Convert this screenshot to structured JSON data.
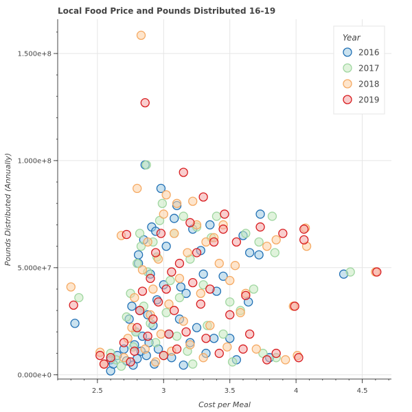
{
  "chart_data": {
    "type": "scatter",
    "title": "Local Food Price and Pounds Distributed 16-19",
    "xlabel": "Cost per Meal",
    "ylabel": "Pounds Distributed (Annually)",
    "xlim": [
      2.2,
      4.72
    ],
    "ylim": [
      -2000000,
      166000000
    ],
    "x_ticks": [
      2.5,
      3,
      3.5,
      4,
      4.5
    ],
    "x_tick_labels": [
      "2.5",
      "3",
      "3.5",
      "4",
      "4.5"
    ],
    "y_ticks": [
      0,
      50000000,
      100000000,
      150000000
    ],
    "y_tick_labels": [
      "0.000e+0",
      "5.000e+7",
      "1.000e+8",
      "1.500e+8"
    ],
    "grid": true,
    "legend": {
      "title": "Year",
      "placement": "top-right"
    },
    "series": [
      {
        "name": "2016",
        "fill": "#9ecae1",
        "stroke": "#1f6fb4",
        "points": [
          [
            2.33,
            24000000
          ],
          [
            2.6,
            1800000
          ],
          [
            2.6,
            7000000
          ],
          [
            2.62,
            5000000
          ],
          [
            2.65,
            9000000
          ],
          [
            2.7,
            12000000
          ],
          [
            2.72,
            6500000
          ],
          [
            2.74,
            26000000
          ],
          [
            2.76,
            32000000
          ],
          [
            2.77,
            4500000
          ],
          [
            2.78,
            14000000
          ],
          [
            2.79,
            20000000
          ],
          [
            2.8,
            7500000
          ],
          [
            2.81,
            52000000
          ],
          [
            2.81,
            56000000
          ],
          [
            2.82,
            30000000
          ],
          [
            2.83,
            11000000
          ],
          [
            2.84,
            18000000
          ],
          [
            2.85,
            63000000
          ],
          [
            2.86,
            98000000
          ],
          [
            2.87,
            9000000
          ],
          [
            2.88,
            28000000
          ],
          [
            2.89,
            15000000
          ],
          [
            2.9,
            47000000
          ],
          [
            2.91,
            69000000
          ],
          [
            2.92,
            23000000
          ],
          [
            2.93,
            5000000
          ],
          [
            2.94,
            67000000
          ],
          [
            2.95,
            35000000
          ],
          [
            2.96,
            12000000
          ],
          [
            2.98,
            87000000
          ],
          [
            3.0,
            42000000
          ],
          [
            3.02,
            60000000
          ],
          [
            3.04,
            19000000
          ],
          [
            3.06,
            8000000
          ],
          [
            3.08,
            73000000
          ],
          [
            3.1,
            79000000
          ],
          [
            3.12,
            26000000
          ],
          [
            3.13,
            41000000
          ],
          [
            3.15,
            4500000
          ],
          [
            3.17,
            38000000
          ],
          [
            3.2,
            15000000
          ],
          [
            3.22,
            68000000
          ],
          [
            3.25,
            22000000
          ],
          [
            3.28,
            58000000
          ],
          [
            3.3,
            47000000
          ],
          [
            3.32,
            10000000
          ],
          [
            3.35,
            70000000
          ],
          [
            3.38,
            17000000
          ],
          [
            3.4,
            39000000
          ],
          [
            3.45,
            46000000
          ],
          [
            3.5,
            17000000
          ],
          [
            3.55,
            7000000
          ],
          [
            3.6,
            65000000
          ],
          [
            3.64,
            34000000
          ],
          [
            3.65,
            57000000
          ],
          [
            3.72,
            56000000
          ],
          [
            3.73,
            75000000
          ],
          [
            3.8,
            8000000
          ],
          [
            4.36,
            47000000
          ]
        ]
      },
      {
        "name": "2017",
        "fill": "#c7e9c0",
        "stroke": "#9fd6a0",
        "points": [
          [
            2.36,
            36000000
          ],
          [
            2.6,
            10000000
          ],
          [
            2.64,
            7000000
          ],
          [
            2.68,
            4000000
          ],
          [
            2.72,
            27000000
          ],
          [
            2.75,
            38000000
          ],
          [
            2.77,
            13000000
          ],
          [
            2.79,
            20000000
          ],
          [
            2.8,
            52000000
          ],
          [
            2.82,
            66000000
          ],
          [
            2.83,
            60000000
          ],
          [
            2.85,
            32000000
          ],
          [
            2.87,
            98000000
          ],
          [
            2.88,
            48000000
          ],
          [
            2.9,
            24000000
          ],
          [
            2.92,
            62000000
          ],
          [
            2.94,
            15000000
          ],
          [
            2.95,
            55000000
          ],
          [
            2.97,
            72000000
          ],
          [
            2.99,
            80000000
          ],
          [
            3.0,
            9000000
          ],
          [
            3.02,
            29000000
          ],
          [
            3.05,
            44000000
          ],
          [
            3.08,
            66000000
          ],
          [
            3.1,
            18000000
          ],
          [
            3.12,
            36000000
          ],
          [
            3.15,
            74000000
          ],
          [
            3.18,
            11000000
          ],
          [
            3.2,
            54000000
          ],
          [
            3.22,
            5000000
          ],
          [
            3.25,
            69000000
          ],
          [
            3.3,
            42000000
          ],
          [
            3.33,
            23000000
          ],
          [
            3.36,
            64000000
          ],
          [
            3.4,
            74000000
          ],
          [
            3.45,
            19000000
          ],
          [
            3.5,
            34000000
          ],
          [
            3.52,
            6000000
          ],
          [
            3.58,
            30000000
          ],
          [
            3.62,
            66000000
          ],
          [
            3.68,
            40000000
          ],
          [
            3.72,
            62000000
          ],
          [
            3.75,
            10000000
          ],
          [
            3.82,
            74000000
          ],
          [
            3.84,
            57000000
          ],
          [
            3.85,
            8000000
          ],
          [
            4.41,
            48000000
          ]
        ]
      },
      {
        "name": "2018",
        "fill": "#fdd0a2",
        "stroke": "#f5a962",
        "points": [
          [
            2.3,
            41000000
          ],
          [
            2.52,
            10500000
          ],
          [
            2.55,
            5000000
          ],
          [
            2.68,
            65000000
          ],
          [
            2.7,
            8000000
          ],
          [
            2.73,
            17000000
          ],
          [
            2.76,
            22000000
          ],
          [
            2.78,
            36000000
          ],
          [
            2.8,
            87000000
          ],
          [
            2.83,
            158500000
          ],
          [
            2.84,
            49000000
          ],
          [
            2.86,
            12000000
          ],
          [
            2.88,
            62000000
          ],
          [
            2.9,
            28000000
          ],
          [
            2.92,
            40000000
          ],
          [
            2.94,
            6000000
          ],
          [
            2.96,
            54000000
          ],
          [
            2.98,
            19000000
          ],
          [
            3.0,
            75000000
          ],
          [
            3.02,
            84000000
          ],
          [
            3.04,
            33000000
          ],
          [
            3.06,
            11000000
          ],
          [
            3.08,
            66000000
          ],
          [
            3.1,
            80000000
          ],
          [
            3.12,
            45000000
          ],
          [
            3.15,
            25000000
          ],
          [
            3.18,
            57000000
          ],
          [
            3.2,
            14000000
          ],
          [
            3.22,
            81000000
          ],
          [
            3.25,
            70000000
          ],
          [
            3.28,
            38000000
          ],
          [
            3.3,
            8000000
          ],
          [
            3.32,
            62000000
          ],
          [
            3.35,
            23000000
          ],
          [
            3.38,
            64000000
          ],
          [
            3.42,
            52000000
          ],
          [
            3.45,
            70000000
          ],
          [
            3.48,
            13000000
          ],
          [
            3.5,
            44000000
          ],
          [
            3.54,
            51000000
          ],
          [
            3.58,
            29000000
          ],
          [
            3.62,
            38000000
          ],
          [
            3.7,
            12000000
          ],
          [
            3.78,
            60000000
          ],
          [
            3.85,
            63000000
          ],
          [
            3.92,
            7000000
          ],
          [
            3.98,
            32000000
          ],
          [
            4.01,
            9000000
          ],
          [
            4.07,
            68500000
          ],
          [
            4.08,
            60000000
          ],
          [
            4.6,
            48000000
          ]
        ]
      },
      {
        "name": "2019",
        "fill": "#f4a6a6",
        "stroke": "#d7191c",
        "points": [
          [
            2.32,
            32500000
          ],
          [
            2.52,
            9000000
          ],
          [
            2.55,
            5000000
          ],
          [
            2.6,
            8000000
          ],
          [
            2.7,
            15000000
          ],
          [
            2.72,
            65500000
          ],
          [
            2.75,
            6000000
          ],
          [
            2.78,
            11000000
          ],
          [
            2.8,
            22000000
          ],
          [
            2.82,
            30000000
          ],
          [
            2.84,
            39000000
          ],
          [
            2.86,
            127000000
          ],
          [
            2.88,
            18000000
          ],
          [
            2.9,
            45000000
          ],
          [
            2.92,
            26000000
          ],
          [
            2.94,
            57000000
          ],
          [
            2.96,
            34000000
          ],
          [
            2.98,
            66000000
          ],
          [
            3.0,
            9000000
          ],
          [
            3.02,
            40000000
          ],
          [
            3.04,
            19000000
          ],
          [
            3.06,
            48000000
          ],
          [
            3.08,
            30000000
          ],
          [
            3.1,
            12000000
          ],
          [
            3.12,
            52000000
          ],
          [
            3.15,
            94500000
          ],
          [
            3.17,
            20000000
          ],
          [
            3.2,
            71000000
          ],
          [
            3.22,
            43000000
          ],
          [
            3.25,
            57000000
          ],
          [
            3.28,
            33000000
          ],
          [
            3.3,
            83000000
          ],
          [
            3.32,
            17000000
          ],
          [
            3.35,
            40000000
          ],
          [
            3.38,
            62000000
          ],
          [
            3.42,
            10000000
          ],
          [
            3.45,
            68000000
          ],
          [
            3.46,
            75000000
          ],
          [
            3.5,
            28000000
          ],
          [
            3.55,
            62000000
          ],
          [
            3.6,
            12000000
          ],
          [
            3.62,
            37000000
          ],
          [
            3.65,
            19000000
          ],
          [
            3.73,
            69000000
          ],
          [
            3.78,
            7000000
          ],
          [
            3.85,
            10000000
          ],
          [
            3.9,
            66000000
          ],
          [
            3.99,
            32000000
          ],
          [
            4.02,
            8000000
          ],
          [
            4.06,
            68000000
          ],
          [
            4.06,
            63000000
          ],
          [
            4.61,
            48000000
          ]
        ]
      }
    ]
  }
}
